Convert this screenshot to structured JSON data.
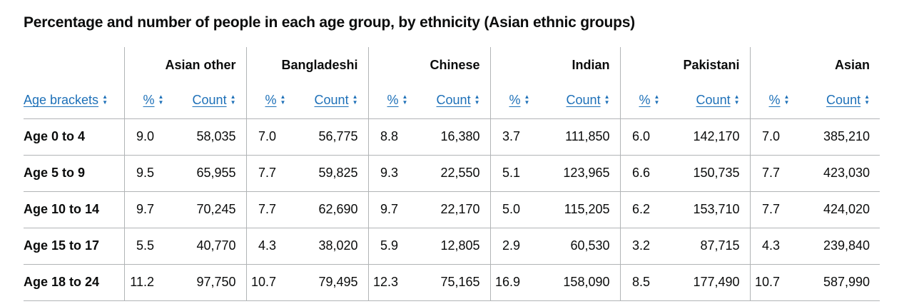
{
  "caption": "Percentage and number of people in each age group, by ethnicity (Asian ethnic groups)",
  "age_header": "Age brackets",
  "pct_label": "%",
  "count_label": "Count",
  "sort_icon_up": "▲",
  "sort_icon_down": "▼",
  "groups": [
    "Asian other",
    "Bangladeshi",
    "Chinese",
    "Indian",
    "Pakistani",
    "Asian"
  ],
  "rows": [
    {
      "age": "Age 0 to 4",
      "values": [
        [
          "9.0",
          "58,035"
        ],
        [
          "7.0",
          "56,775"
        ],
        [
          "8.8",
          "16,380"
        ],
        [
          "3.7",
          "111,850"
        ],
        [
          "6.0",
          "142,170"
        ],
        [
          "7.0",
          "385,210"
        ]
      ]
    },
    {
      "age": "Age 5 to 9",
      "values": [
        [
          "9.5",
          "65,955"
        ],
        [
          "7.7",
          "59,825"
        ],
        [
          "9.3",
          "22,550"
        ],
        [
          "5.1",
          "123,965"
        ],
        [
          "6.6",
          "150,735"
        ],
        [
          "7.7",
          "423,030"
        ]
      ]
    },
    {
      "age": "Age 10 to 14",
      "values": [
        [
          "9.7",
          "70,245"
        ],
        [
          "7.7",
          "62,690"
        ],
        [
          "9.7",
          "22,170"
        ],
        [
          "5.0",
          "115,205"
        ],
        [
          "6.2",
          "153,710"
        ],
        [
          "7.7",
          "424,020"
        ]
      ]
    },
    {
      "age": "Age 15 to 17",
      "values": [
        [
          "5.5",
          "40,770"
        ],
        [
          "4.3",
          "38,020"
        ],
        [
          "5.9",
          "12,805"
        ],
        [
          "2.9",
          "60,530"
        ],
        [
          "3.2",
          "87,715"
        ],
        [
          "4.3",
          "239,840"
        ]
      ]
    },
    {
      "age": "Age 18 to 24",
      "values": [
        [
          "11.2",
          "97,750"
        ],
        [
          "10.7",
          "79,495"
        ],
        [
          "12.3",
          "75,165"
        ],
        [
          "16.9",
          "158,090"
        ],
        [
          "8.5",
          "177,490"
        ],
        [
          "10.7",
          "587,990"
        ]
      ]
    }
  ]
}
